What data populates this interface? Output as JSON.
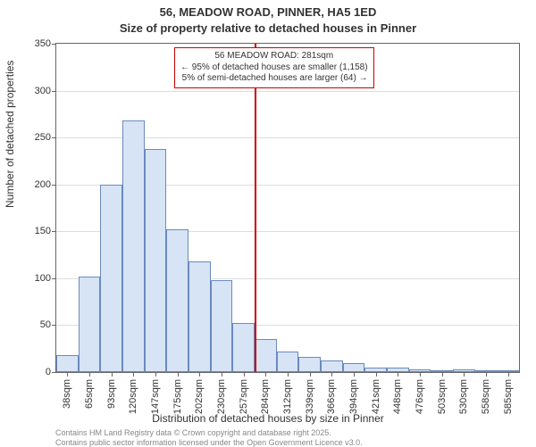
{
  "title_main": "56, MEADOW ROAD, PINNER, HA5 1ED",
  "title_sub": "Size of property relative to detached houses in Pinner",
  "y_axis_label": "Number of detached properties",
  "x_axis_label": "Distribution of detached houses by size in Pinner",
  "attribution_line1": "Contains HM Land Registry data © Crown copyright and database right 2025.",
  "attribution_line2": "Contains public sector information licensed under the Open Government Licence v3.0.",
  "chart": {
    "type": "histogram",
    "background_color": "#ffffff",
    "grid_color": "#dddddd",
    "axis_color": "#666666",
    "bar_fill": "#d6e4f5",
    "bar_stroke": "#6a8abf",
    "marker_color": "#cc0000",
    "ylim": [
      0,
      350
    ],
    "yticks": [
      0,
      50,
      100,
      150,
      200,
      250,
      300,
      350
    ],
    "xticks": [
      "38sqm",
      "65sqm",
      "93sqm",
      "120sqm",
      "147sqm",
      "175sqm",
      "202sqm",
      "230sqm",
      "257sqm",
      "284sqm",
      "312sqm",
      "339sqm",
      "366sqm",
      "394sqm",
      "421sqm",
      "448sqm",
      "476sqm",
      "503sqm",
      "530sqm",
      "558sqm",
      "585sqm"
    ],
    "bars": [
      18,
      102,
      200,
      268,
      238,
      152,
      118,
      98,
      52,
      35,
      22,
      16,
      12,
      10,
      5,
      5,
      3,
      0,
      3,
      2,
      2
    ],
    "marker_index_after": 9,
    "annotation": {
      "line1": "56 MEADOW ROAD: 281sqm",
      "line2": "← 95% of detached houses are smaller (1,158)",
      "line3": "5% of semi-detached houses are larger (64) →"
    },
    "label_fontsize": 11,
    "title_fontsize": 13
  }
}
